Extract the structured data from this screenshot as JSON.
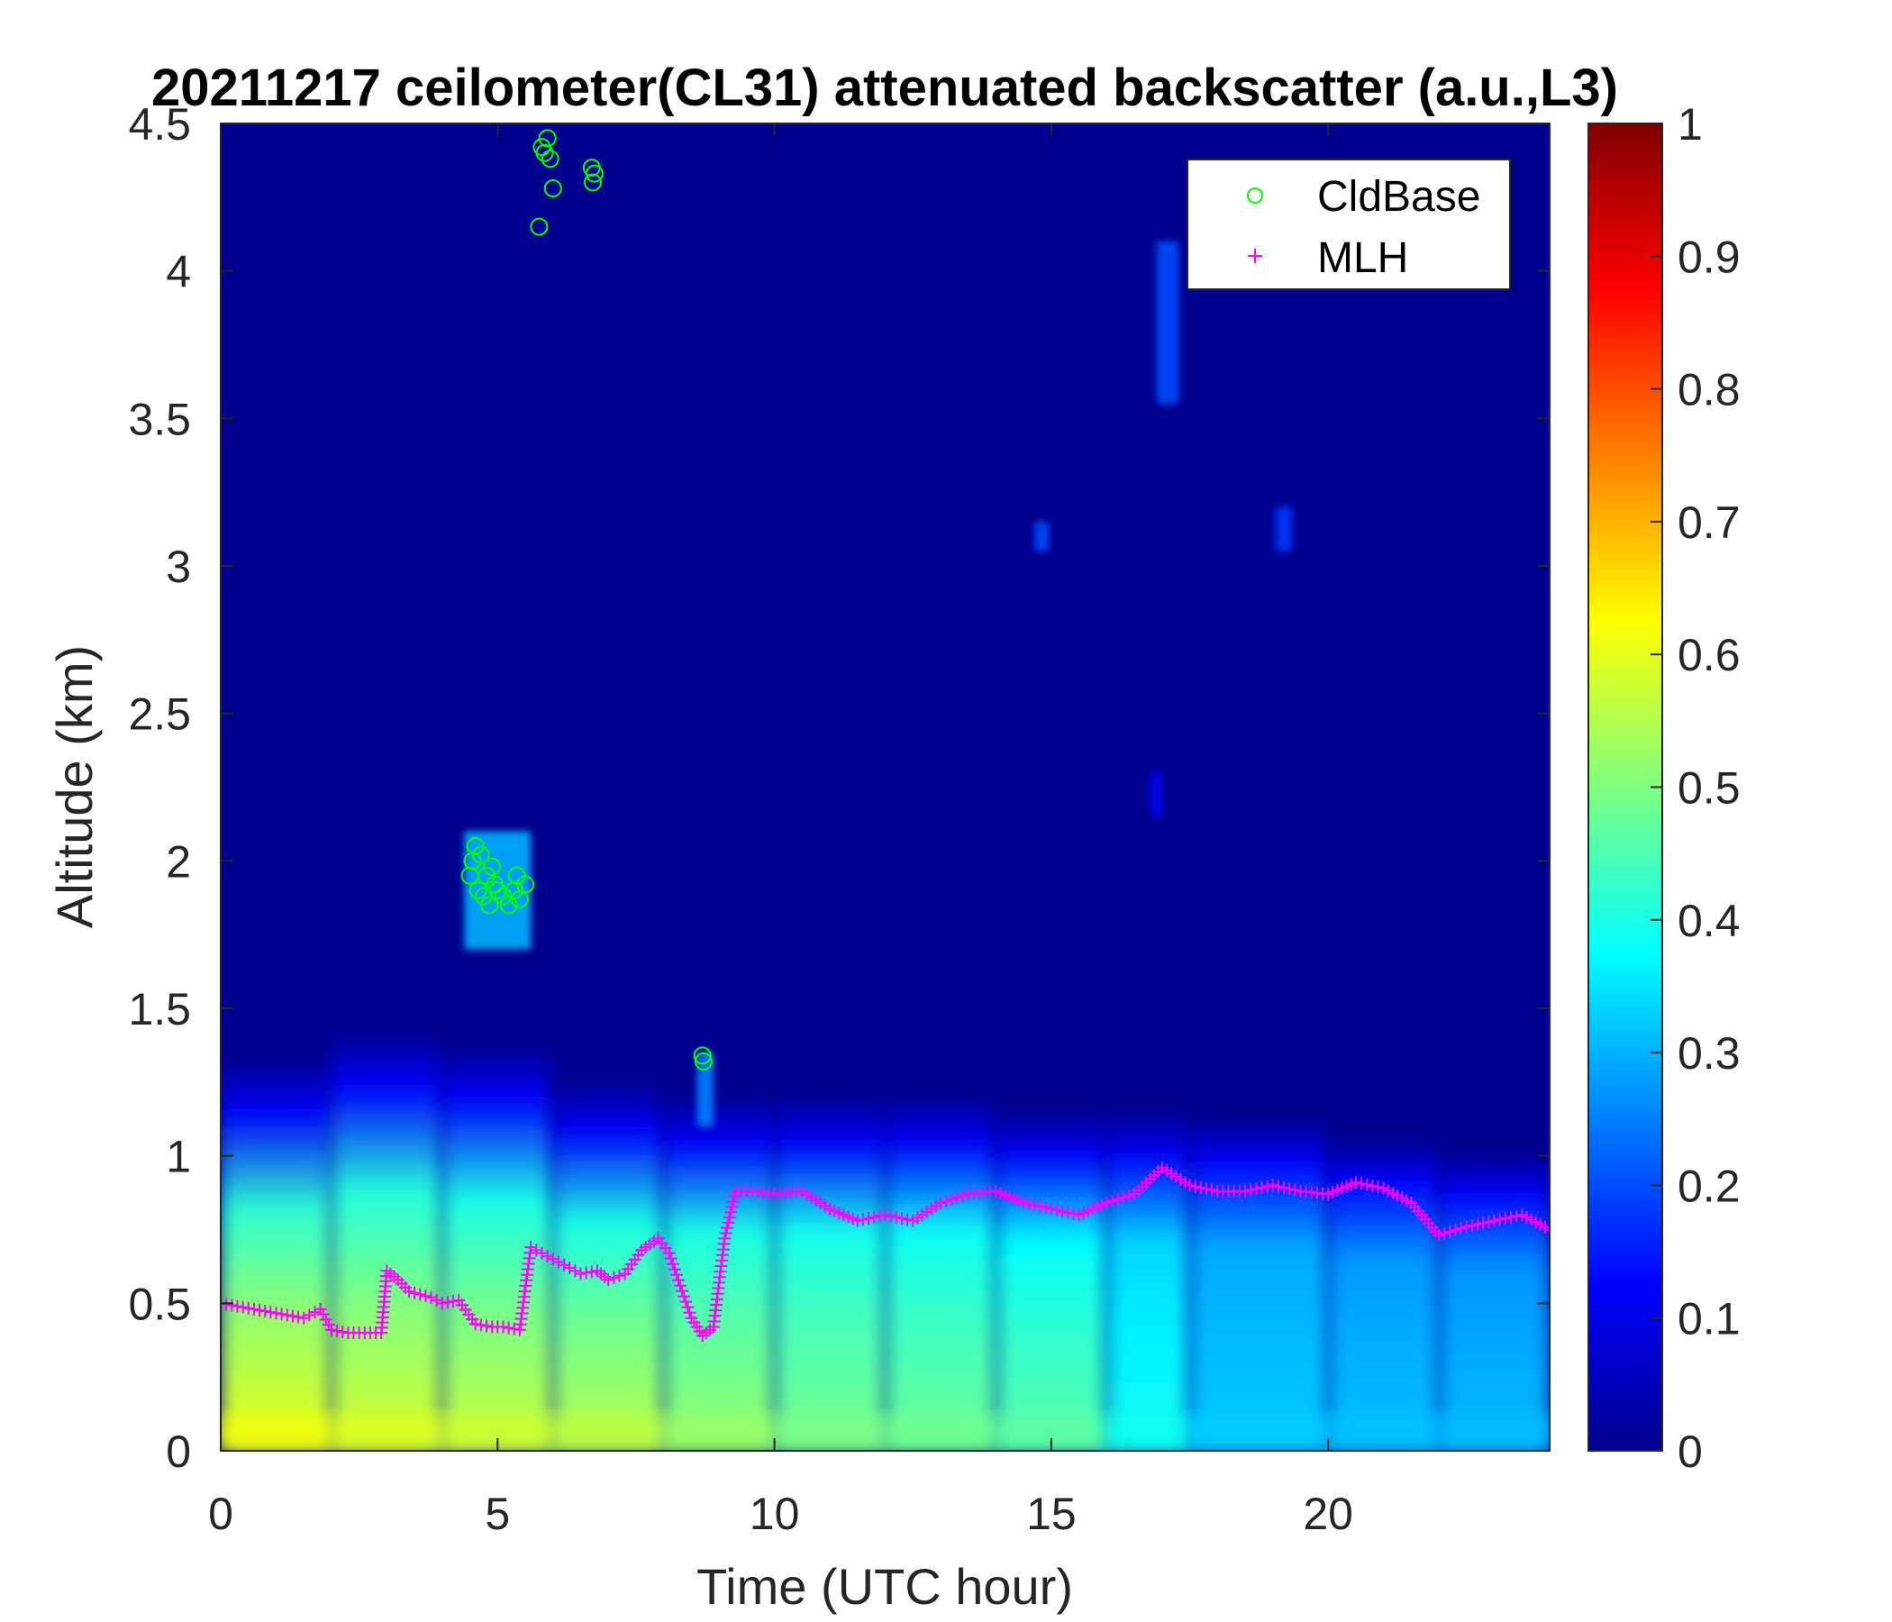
{
  "chart_data": {
    "type": "heatmap",
    "title": "20211217 ceilometer(CL31) attenuated backscatter (a.u.,L3)",
    "xlabel": "Time (UTC hour)",
    "ylabel": "Altitude (km)",
    "xlim": [
      0,
      24
    ],
    "ylim": [
      0,
      4.5
    ],
    "xticks": [
      0,
      5,
      10,
      15,
      20
    ],
    "xtick_labels": [
      "0",
      "5",
      "10",
      "15",
      "20"
    ],
    "yticks": [
      0,
      0.5,
      1,
      1.5,
      2,
      2.5,
      3,
      3.5,
      4,
      4.5
    ],
    "ytick_labels": [
      "0",
      "0.5",
      "1",
      "1.5",
      "2",
      "2.5",
      "3",
      "3.5",
      "4",
      "4.5"
    ],
    "colorbar": {
      "colormap": "jet",
      "range": [
        0,
        1
      ],
      "ticks": [
        0,
        0.1,
        0.2,
        0.3,
        0.4,
        0.5,
        0.6,
        0.7,
        0.8,
        0.9,
        1
      ],
      "tick_labels": [
        "0",
        "0.1",
        "0.2",
        "0.3",
        "0.4",
        "0.5",
        "0.6",
        "0.7",
        "0.8",
        "0.9",
        "1"
      ]
    },
    "legend": {
      "placement": "top-right",
      "entries": [
        {
          "label": "CldBase",
          "marker": "circle",
          "color": "#00ff00"
        },
        {
          "label": "MLH",
          "marker": "plus",
          "color": "#ff00ff"
        }
      ]
    },
    "background_profile": {
      "description_free": true,
      "x": [
        0,
        2,
        4,
        6,
        8,
        10,
        12,
        14,
        16,
        17.5,
        20,
        22,
        24
      ],
      "surface_value": [
        0.62,
        0.6,
        0.58,
        0.57,
        0.55,
        0.5,
        0.49,
        0.48,
        0.45,
        0.33,
        0.32,
        0.31,
        0.31
      ],
      "mid_value": [
        0.42,
        0.42,
        0.4,
        0.4,
        0.4,
        0.4,
        0.39,
        0.38,
        0.37,
        0.3,
        0.28,
        0.27,
        0.27
      ],
      "top_km": [
        1.3,
        1.4,
        1.5,
        1.3,
        1.25,
        1.2,
        1.25,
        1.2,
        1.15,
        1.2,
        1.1,
        1.05,
        1.0
      ]
    },
    "series": [
      {
        "name": "MLH",
        "marker": "plus",
        "color": "#ff00ff",
        "x": [
          0,
          0.3,
          0.6,
          0.9,
          1.2,
          1.5,
          1.8,
          2.0,
          2.3,
          2.6,
          2.9,
          3.0,
          3.2,
          3.4,
          3.6,
          3.8,
          4.0,
          4.3,
          4.6,
          4.9,
          5.1,
          5.4,
          5.6,
          5.9,
          6.2,
          6.5,
          6.8,
          7.0,
          7.3,
          7.6,
          7.9,
          8.1,
          8.3,
          8.5,
          8.7,
          8.9,
          9.1,
          9.3,
          9.6,
          10.0,
          10.5,
          11.0,
          11.5,
          12.0,
          12.5,
          13.0,
          13.5,
          14.0,
          14.5,
          15.0,
          15.5,
          16.0,
          16.5,
          17.0,
          17.5,
          18.0,
          18.5,
          19.0,
          19.5,
          20.0,
          20.5,
          21.0,
          21.5,
          22.0,
          22.5,
          23.0,
          23.5,
          24.0
        ],
        "y": [
          0.5,
          0.49,
          0.48,
          0.47,
          0.46,
          0.45,
          0.48,
          0.41,
          0.4,
          0.4,
          0.4,
          0.61,
          0.58,
          0.54,
          0.53,
          0.52,
          0.5,
          0.51,
          0.43,
          0.42,
          0.42,
          0.41,
          0.69,
          0.66,
          0.63,
          0.6,
          0.61,
          0.58,
          0.6,
          0.68,
          0.72,
          0.67,
          0.56,
          0.45,
          0.39,
          0.42,
          0.72,
          0.88,
          0.88,
          0.87,
          0.88,
          0.82,
          0.78,
          0.8,
          0.78,
          0.84,
          0.87,
          0.88,
          0.84,
          0.82,
          0.8,
          0.84,
          0.87,
          0.96,
          0.9,
          0.88,
          0.88,
          0.9,
          0.88,
          0.87,
          0.91,
          0.89,
          0.84,
          0.73,
          0.76,
          0.78,
          0.8,
          0.75
        ]
      },
      {
        "name": "CldBase",
        "marker": "circle",
        "color": "#00ff00",
        "x": [
          4.5,
          4.55,
          4.6,
          4.65,
          4.7,
          4.75,
          4.8,
          4.85,
          4.9,
          4.95,
          5.0,
          5.1,
          5.2,
          5.3,
          5.35,
          5.4,
          5.5,
          5.75,
          5.8,
          5.85,
          5.9,
          5.95,
          6.0,
          6.7,
          6.72,
          6.75,
          8.7,
          8.72
        ],
        "y": [
          1.95,
          2.0,
          2.05,
          1.9,
          2.02,
          1.88,
          1.95,
          1.85,
          1.98,
          1.92,
          1.9,
          1.88,
          1.85,
          1.9,
          1.95,
          1.87,
          1.92,
          4.15,
          4.42,
          4.4,
          4.45,
          4.38,
          4.28,
          4.35,
          4.3,
          4.33,
          1.34,
          1.32
        ]
      }
    ],
    "bright_features": [
      {
        "x": 4.4,
        "x2": 5.6,
        "y": 1.7,
        "y2": 2.1,
        "value": 0.3
      },
      {
        "x": 8.6,
        "x2": 8.9,
        "y": 1.1,
        "y2": 1.35,
        "value": 0.25
      },
      {
        "x": 14.7,
        "x2": 14.95,
        "y": 3.05,
        "y2": 3.15,
        "value": 0.2
      },
      {
        "x": 16.9,
        "x2": 17.3,
        "y": 3.55,
        "y2": 4.1,
        "value": 0.2
      },
      {
        "x": 16.8,
        "x2": 17.0,
        "y": 2.15,
        "y2": 2.3,
        "value": 0.12
      },
      {
        "x": 19.05,
        "x2": 19.35,
        "y": 3.05,
        "y2": 3.2,
        "value": 0.18
      }
    ]
  }
}
